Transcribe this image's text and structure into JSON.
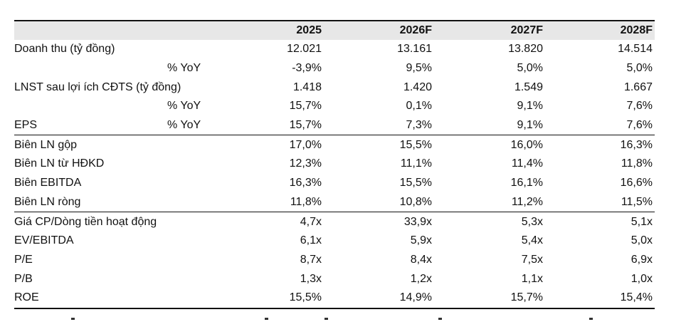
{
  "header": {
    "label": "",
    "years": [
      "2025",
      "2026F",
      "2027F",
      "2028F"
    ]
  },
  "rows": [
    {
      "label": "Doanh thu (tỷ đồng)",
      "sub": "",
      "values": [
        "12.021",
        "13.161",
        "13.820",
        "14.514"
      ]
    },
    {
      "label": "",
      "sub": "% YoY",
      "values": [
        "-3,9%",
        "9,5%",
        "5,0%",
        "5,0%"
      ]
    },
    {
      "label": "LNST sau lợi ích CĐTS (tỷ đồng)",
      "sub": "",
      "values": [
        "1.418",
        "1.420",
        "1.549",
        "1.667"
      ]
    },
    {
      "label": "",
      "sub": "% YoY",
      "values": [
        "15,7%",
        "0,1%",
        "9,1%",
        "7,6%"
      ]
    },
    {
      "label": "EPS",
      "sub": "% YoY",
      "values": [
        "15,7%",
        "7,3%",
        "9,1%",
        "7,6%"
      ]
    },
    {
      "label": "Biên LN gộp",
      "sub": "",
      "values": [
        "17,0%",
        "15,5%",
        "16,0%",
        "16,3%"
      ]
    },
    {
      "label": "Biên LN từ HĐKD",
      "sub": "",
      "values": [
        "12,3%",
        "11,1%",
        "11,4%",
        "11,8%"
      ]
    },
    {
      "label": "Biên EBITDA",
      "sub": "",
      "values": [
        "16,3%",
        "15,5%",
        "16,1%",
        "16,6%"
      ]
    },
    {
      "label": "Biên LN ròng",
      "sub": "",
      "values": [
        "11,8%",
        "10,8%",
        "11,2%",
        "11,5%"
      ]
    },
    {
      "label": "Giá CP/Dòng tiền hoạt động",
      "sub": "",
      "values": [
        "4,7x",
        "33,9x",
        "5,3x",
        "5,1x"
      ]
    },
    {
      "label": "EV/EBITDA",
      "sub": "",
      "values": [
        "6,1x",
        "5,9x",
        "5,4x",
        "5,0x"
      ]
    },
    {
      "label": "P/E",
      "sub": "",
      "values": [
        "8,7x",
        "8,4x",
        "7,5x",
        "6,9x"
      ]
    },
    {
      "label": "P/B",
      "sub": "",
      "values": [
        "1,3x",
        "1,2x",
        "1,1x",
        "1,0x"
      ]
    },
    {
      "label": "ROE",
      "sub": "",
      "values": [
        "15,5%",
        "14,9%",
        "15,7%",
        "15,4%"
      ]
    }
  ],
  "colors": {
    "header_bg": "#e7e7e7",
    "rule": "#111111",
    "text": "#111111"
  }
}
